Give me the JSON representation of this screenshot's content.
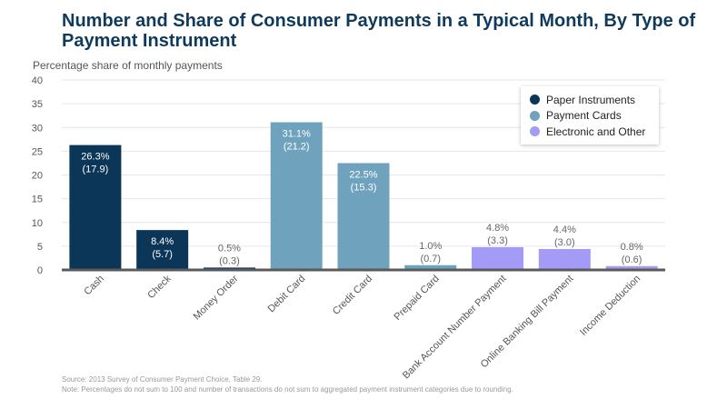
{
  "title": "Number and Share of Consumer Payments in a Typical Month, By Type of Payment Instrument",
  "chart_data": {
    "type": "bar",
    "title": "Number and Share of Consumer Payments in a Typical Month, By Type of Payment Instrument",
    "ylabel": "Percentage share of monthly payments",
    "xlabel": "",
    "ylim": [
      0,
      40
    ],
    "yticks": [
      0,
      5,
      10,
      15,
      20,
      25,
      30,
      35,
      40
    ],
    "grid": true,
    "legend_position": "top-right",
    "categories": [
      "Cash",
      "Check",
      "Money Order",
      "Debit Card",
      "Credit Card",
      "Prepaid Card",
      "Bank Account Number Payment",
      "Online Banking Bill Payment",
      "Income Deduction"
    ],
    "values": [
      26.3,
      8.4,
      0.5,
      31.1,
      22.5,
      1.0,
      4.8,
      4.4,
      0.8
    ],
    "counts": [
      17.9,
      5.7,
      0.3,
      21.2,
      15.3,
      0.7,
      3.3,
      3.0,
      0.6
    ],
    "value_labels": [
      "26.3%",
      "8.4%",
      "0.5%",
      "31.1%",
      "22.5%",
      "1.0%",
      "4.8%",
      "4.4%",
      "0.8%"
    ],
    "count_labels": [
      "(17.9)",
      "(5.7)",
      "(0.3)",
      "(21.2)",
      "(15.3)",
      "(0.7)",
      "(3.3)",
      "(3.0)",
      "(0.6)"
    ],
    "groups": [
      "Paper Instruments",
      "Paper Instruments",
      "Paper Instruments",
      "Payment Cards",
      "Payment Cards",
      "Payment Cards",
      "Electronic and Other",
      "Electronic and Other",
      "Electronic and Other"
    ],
    "legend": [
      {
        "name": "Paper Instruments",
        "color": "#0c3657"
      },
      {
        "name": "Payment Cards",
        "color": "#6fa3bd"
      },
      {
        "name": "Electronic and Other",
        "color": "#a39bf5"
      }
    ]
  },
  "footer": {
    "source": "Source: 2013 Survey of Consumer Payment Choice, Table 29.",
    "note": "Note: Percentages do not sum to 100 and number of transactions do not sum to aggregated payment instrument categories due to rounding."
  }
}
